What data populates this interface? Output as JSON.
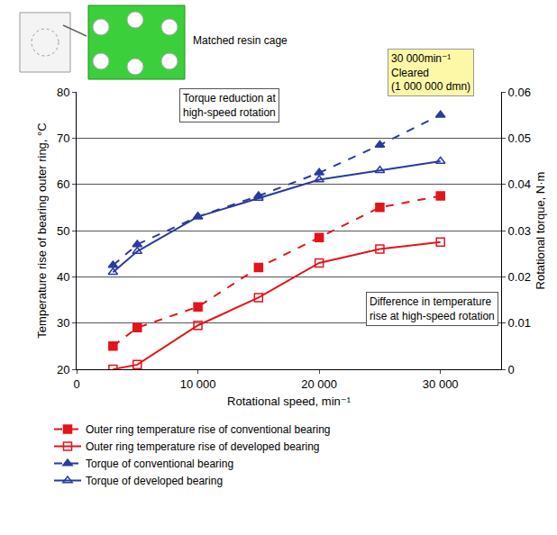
{
  "chart_data": {
    "type": "line",
    "x_label": "Rotational speed, min⁻¹",
    "y_label": "Temperature rise of bearing outer ring, °C",
    "y2_label": "Rotational torque, N·m",
    "x": [
      3000,
      5000,
      10000,
      15000,
      20000,
      25000,
      30000
    ],
    "xlim": [
      0,
      35000
    ],
    "xticks": [
      0,
      {
        "value": 10000,
        "label": "10 000"
      },
      {
        "value": 20000,
        "label": "20 000"
      },
      {
        "value": 30000,
        "label": "30 000"
      }
    ],
    "ylim": [
      20,
      80
    ],
    "yticks": [
      20,
      30,
      40,
      50,
      60,
      70,
      80
    ],
    "y2lim": [
      0,
      0.06
    ],
    "y2ticks": [
      0,
      0.01,
      0.02,
      0.03,
      0.04,
      0.05,
      0.06
    ],
    "grid": true,
    "legend": "bottom",
    "series": [
      {
        "name": "Outer ring temperature rise of conventional bearing",
        "color": "#e3141b",
        "marker": "square",
        "line_style": "dash",
        "values": [
          25,
          29,
          33.5,
          42,
          48.5,
          55,
          57.5
        ]
      },
      {
        "name": "Outer ring temperature rise of developed bearing",
        "color": "#e3141b",
        "marker": "square-open",
        "line_style": "solid",
        "values": [
          20,
          21,
          29.5,
          35.5,
          43,
          46,
          47.5
        ]
      },
      {
        "name": "Torque of conventional bearing",
        "color": "#2a3b9e",
        "marker": "triangle-up",
        "line_style": "dash",
        "axis": "y2",
        "values": [
          0.0225,
          0.027,
          0.033,
          0.0375,
          0.0425,
          0.0485,
          0.055
        ]
      },
      {
        "name": "Torque of developed bearing",
        "color": "#2a3b9e",
        "marker": "triangle-up-open",
        "line_style": "solid",
        "axis": "y2",
        "values": [
          0.021,
          0.0255,
          0.033,
          0.037,
          0.041,
          0.043,
          0.045
        ]
      }
    ],
    "annotations": [
      {
        "text": "Torque reduction at\nhigh-speed rotation",
        "x": 12600,
        "y": 77
      },
      {
        "text": "Difference in temperature\nrise at high-speed rotation",
        "x": 29300,
        "y": 33
      }
    ],
    "image_label": "Matched resin cage",
    "callout": "30 000min⁻¹\nCleared\n(1 000 000 dmn)"
  }
}
